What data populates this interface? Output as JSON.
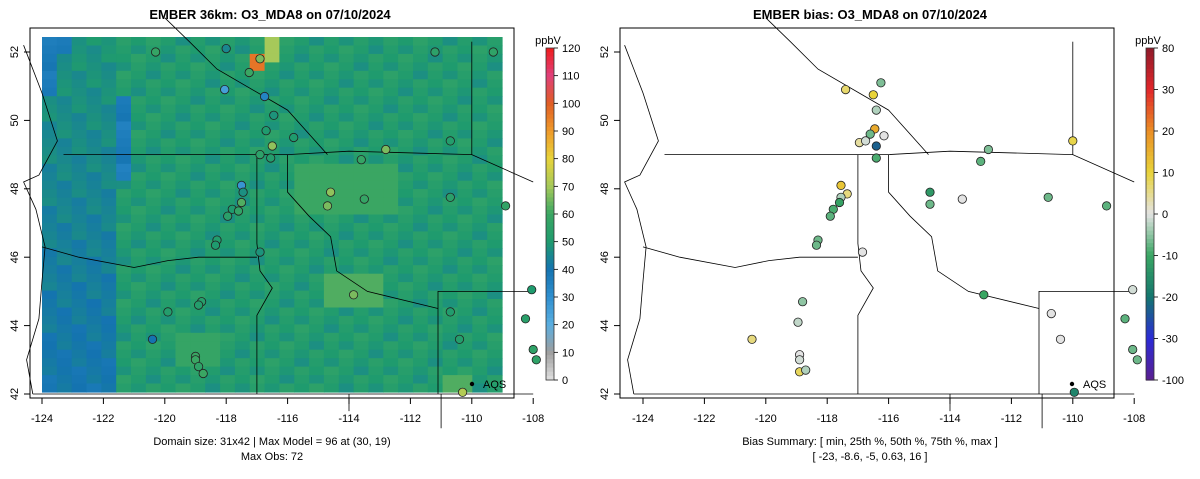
{
  "left_panel": {
    "title": "EMBER 36km: O3_MDA8 on 07/10/2024",
    "colorbar_unit": "ppbV",
    "colorbar_ticks": [
      "0",
      "10",
      "20",
      "30",
      "40",
      "50",
      "60",
      "70",
      "80",
      "90",
      "100",
      "110",
      "120"
    ],
    "footer_line1": "Domain size: 31x42 | Max Model = 96 at (30, 19)",
    "footer_line2": "Max Obs: 72",
    "aqs_label": "AQS"
  },
  "right_panel": {
    "title": "EMBER bias: O3_MDA8 on 07/10/2024",
    "colorbar_unit": "ppbV",
    "colorbar_ticks": [
      "-100",
      "-30",
      "-20",
      "-10",
      "0",
      "10",
      "20",
      "30",
      "80"
    ],
    "footer_line1": "Bias Summary: [ min, 25th %, 50th %, 75th %, max ]",
    "footer_line2": "[ -23,   -8.6,   -5,   0.63,   16 ]",
    "aqs_label": "AQS"
  },
  "axes": {
    "x_ticks": [
      "-124",
      "-122",
      "-120",
      "-118",
      "-116",
      "-114",
      "-112",
      "-110",
      "-108"
    ],
    "y_ticks": [
      "42",
      "44",
      "46",
      "48",
      "50",
      "52"
    ]
  },
  "colors": {
    "ozone_scale": [
      "#e0e0e0",
      "#9e9e9e",
      "#5aaee0",
      "#2f8fcf",
      "#1473b0",
      "#1f9b6e",
      "#3aa663",
      "#a6c95a",
      "#e8d33a",
      "#ee9a2a",
      "#e05d25",
      "#e0407a",
      "#ee1c1c"
    ],
    "bias_scale": [
      "#5a1f8f",
      "#2b2bd6",
      "#14766e",
      "#3aa663",
      "#e3e3e3",
      "#e8d33a",
      "#ea8e25",
      "#e0262a",
      "#8e1a2a"
    ]
  },
  "chart_data": {
    "type": "map",
    "aqs_site_marker": {
      "lon": -109.2,
      "lat": 42.2
    },
    "left_obs": [
      {
        "lon": -117.25,
        "lat": 51.4,
        "v": 60
      },
      {
        "lon": -116.9,
        "lat": 51.8,
        "v": 66
      },
      {
        "lon": -120.3,
        "lat": 52.0,
        "v": 58
      },
      {
        "lon": -118.0,
        "lat": 52.1,
        "v": 45
      },
      {
        "lon": -111.2,
        "lat": 52.0,
        "v": 55
      },
      {
        "lon": -109.3,
        "lat": 52.0,
        "v": 56
      },
      {
        "lon": -118.05,
        "lat": 50.9,
        "v": 25
      },
      {
        "lon": -116.75,
        "lat": 50.7,
        "v": 34
      },
      {
        "lon": -116.45,
        "lat": 50.15,
        "v": 48
      },
      {
        "lon": -116.7,
        "lat": 49.7,
        "v": 50
      },
      {
        "lon": -116.5,
        "lat": 49.25,
        "v": 68
      },
      {
        "lon": -116.9,
        "lat": 49.0,
        "v": 55
      },
      {
        "lon": -116.55,
        "lat": 48.9,
        "v": 52
      },
      {
        "lon": -115.8,
        "lat": 49.5,
        "v": 50
      },
      {
        "lon": -113.6,
        "lat": 48.85,
        "v": 58
      },
      {
        "lon": -112.8,
        "lat": 49.15,
        "v": 66
      },
      {
        "lon": -114.6,
        "lat": 47.9,
        "v": 68
      },
      {
        "lon": -114.7,
        "lat": 47.5,
        "v": 66
      },
      {
        "lon": -113.5,
        "lat": 47.7,
        "v": 58
      },
      {
        "lon": -110.7,
        "lat": 49.4,
        "v": 52
      },
      {
        "lon": -110.7,
        "lat": 47.75,
        "v": 54
      },
      {
        "lon": -108.9,
        "lat": 47.5,
        "v": 57
      },
      {
        "lon": -117.5,
        "lat": 48.1,
        "v": 28
      },
      {
        "lon": -117.45,
        "lat": 47.9,
        "v": 47
      },
      {
        "lon": -117.5,
        "lat": 47.6,
        "v": 62
      },
      {
        "lon": -117.8,
        "lat": 47.4,
        "v": 50
      },
      {
        "lon": -117.95,
        "lat": 47.2,
        "v": 54
      },
      {
        "lon": -117.6,
        "lat": 47.35,
        "v": 57
      },
      {
        "lon": -118.3,
        "lat": 46.5,
        "v": 51
      },
      {
        "lon": -118.35,
        "lat": 46.35,
        "v": 50
      },
      {
        "lon": -116.9,
        "lat": 46.15,
        "v": 48
      },
      {
        "lon": -113.85,
        "lat": 44.9,
        "v": 66
      },
      {
        "lon": -118.8,
        "lat": 44.7,
        "v": 53
      },
      {
        "lon": -118.9,
        "lat": 44.6,
        "v": 52
      },
      {
        "lon": -119.9,
        "lat": 44.4,
        "v": 52
      },
      {
        "lon": -120.4,
        "lat": 43.6,
        "v": 40
      },
      {
        "lon": -119.0,
        "lat": 43.1,
        "v": 60
      },
      {
        "lon": -119.0,
        "lat": 43.0,
        "v": 60
      },
      {
        "lon": -118.9,
        "lat": 42.8,
        "v": 56
      },
      {
        "lon": -118.75,
        "lat": 42.6,
        "v": 60
      },
      {
        "lon": -110.7,
        "lat": 44.4,
        "v": 51
      },
      {
        "lon": -110.4,
        "lat": 43.6,
        "v": 52
      },
      {
        "lon": -108.25,
        "lat": 44.2,
        "v": 54
      },
      {
        "lon": -108.0,
        "lat": 43.3,
        "v": 56
      },
      {
        "lon": -107.9,
        "lat": 43.0,
        "v": 56
      },
      {
        "lon": -108.05,
        "lat": 45.05,
        "v": 50
      },
      {
        "lon": -110.3,
        "lat": 42.05,
        "v": 72
      }
    ],
    "right_obs": [
      {
        "lon": -117.4,
        "lat": 50.9,
        "v": 7
      },
      {
        "lon": -116.25,
        "lat": 51.1,
        "v": -6
      },
      {
        "lon": -116.5,
        "lat": 50.75,
        "v": 10
      },
      {
        "lon": -116.4,
        "lat": 50.3,
        "v": -3
      },
      {
        "lon": -116.45,
        "lat": 49.75,
        "v": 16
      },
      {
        "lon": -116.6,
        "lat": 49.6,
        "v": -7
      },
      {
        "lon": -116.15,
        "lat": 49.55,
        "v": 0
      },
      {
        "lon": -116.4,
        "lat": 49.25,
        "v": -23
      },
      {
        "lon": -116.4,
        "lat": 48.9,
        "v": -9
      },
      {
        "lon": -116.95,
        "lat": 49.35,
        "v": 4
      },
      {
        "lon": -116.75,
        "lat": 49.4,
        "v": -1
      },
      {
        "lon": -113.0,
        "lat": 48.8,
        "v": -8
      },
      {
        "lon": -112.75,
        "lat": 49.15,
        "v": -6
      },
      {
        "lon": -110.0,
        "lat": 49.4,
        "v": 9
      },
      {
        "lon": -117.55,
        "lat": 48.1,
        "v": 12
      },
      {
        "lon": -117.35,
        "lat": 47.85,
        "v": 6
      },
      {
        "lon": -117.55,
        "lat": 47.75,
        "v": -3
      },
      {
        "lon": -117.6,
        "lat": 47.6,
        "v": -11
      },
      {
        "lon": -117.8,
        "lat": 47.4,
        "v": -9
      },
      {
        "lon": -117.9,
        "lat": 47.2,
        "v": -8
      },
      {
        "lon": -118.3,
        "lat": 46.5,
        "v": -7
      },
      {
        "lon": -118.35,
        "lat": 46.35,
        "v": -7
      },
      {
        "lon": -116.85,
        "lat": 46.15,
        "v": 0
      },
      {
        "lon": -114.65,
        "lat": 47.9,
        "v": -13
      },
      {
        "lon": -114.65,
        "lat": 47.55,
        "v": -7
      },
      {
        "lon": -113.6,
        "lat": 47.7,
        "v": 0
      },
      {
        "lon": -110.8,
        "lat": 47.75,
        "v": -7
      },
      {
        "lon": -108.9,
        "lat": 47.5,
        "v": -8
      },
      {
        "lon": -112.9,
        "lat": 44.9,
        "v": -10
      },
      {
        "lon": -118.8,
        "lat": 44.7,
        "v": -5
      },
      {
        "lon": -118.95,
        "lat": 44.1,
        "v": -2
      },
      {
        "lon": -120.45,
        "lat": 43.6,
        "v": 6
      },
      {
        "lon": -118.9,
        "lat": 43.15,
        "v": 0
      },
      {
        "lon": -118.9,
        "lat": 43.0,
        "v": -1
      },
      {
        "lon": -118.9,
        "lat": 42.65,
        "v": 8
      },
      {
        "lon": -118.7,
        "lat": 42.7,
        "v": -3
      },
      {
        "lon": -110.7,
        "lat": 44.35,
        "v": 0
      },
      {
        "lon": -110.4,
        "lat": 43.6,
        "v": 0
      },
      {
        "lon": -108.3,
        "lat": 44.2,
        "v": -8
      },
      {
        "lon": -108.05,
        "lat": 43.3,
        "v": -7
      },
      {
        "lon": -107.9,
        "lat": 43.0,
        "v": -7
      },
      {
        "lon": -108.05,
        "lat": 45.05,
        "v": -1
      },
      {
        "lon": -109.95,
        "lat": 42.05,
        "v": -17
      }
    ]
  }
}
